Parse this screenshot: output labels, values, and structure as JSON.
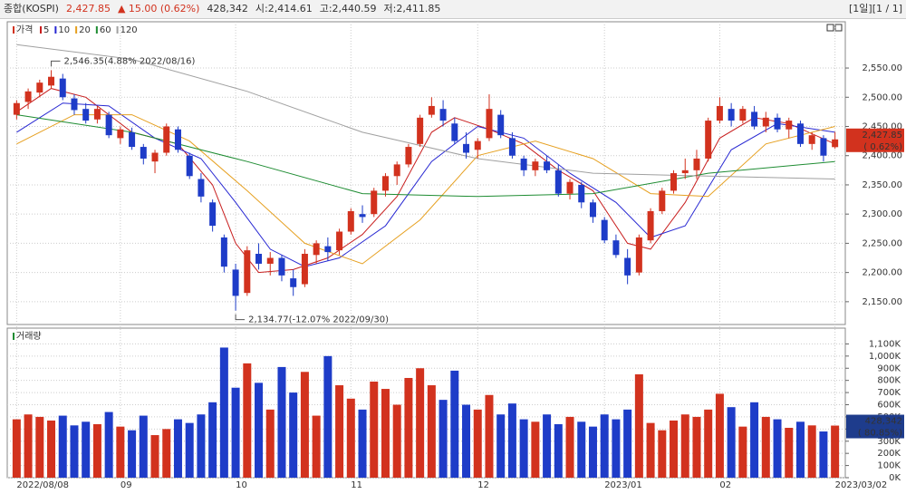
{
  "header": {
    "name": "종합(KOSPI)",
    "price": "2,427.85",
    "change": "▲ 15.00 (0.62%)",
    "volume": "428,342",
    "open": "시:2,414.61",
    "high": "고:2,440.59",
    "low": "저:2,411.85",
    "paging": "[1일][1 / 1]"
  },
  "chart_data": [
    {
      "type": "candlestick",
      "legend_title": "가격",
      "up_color": "#d2321e",
      "down_color": "#1e3cc8",
      "x_labels": [
        {
          "index": 0,
          "label": "2022/08/08"
        },
        {
          "index": 9,
          "label": "09"
        },
        {
          "index": 19,
          "label": "10"
        },
        {
          "index": 29,
          "label": "11"
        },
        {
          "index": 40,
          "label": "12"
        },
        {
          "index": 51,
          "label": "2023/01"
        },
        {
          "index": 61,
          "label": "02"
        },
        {
          "index": 71,
          "label": "2023/03/02"
        }
      ],
      "candles": [
        [
          2470,
          2495,
          2462,
          2490
        ],
        [
          2492,
          2515,
          2480,
          2510
        ],
        [
          2508,
          2530,
          2500,
          2525
        ],
        [
          2520,
          2546.35,
          2515,
          2535
        ],
        [
          2532,
          2540,
          2495,
          2500
        ],
        [
          2498,
          2505,
          2470,
          2478
        ],
        [
          2480,
          2490,
          2455,
          2460
        ],
        [
          2462,
          2485,
          2455,
          2480
        ],
        [
          2470,
          2475,
          2430,
          2435
        ],
        [
          2430,
          2450,
          2420,
          2445
        ],
        [
          2440,
          2448,
          2410,
          2415
        ],
        [
          2415,
          2420,
          2385,
          2395
        ],
        [
          2390,
          2410,
          2370,
          2405
        ],
        [
          2405,
          2455,
          2400,
          2450
        ],
        [
          2445,
          2450,
          2405,
          2410
        ],
        [
          2400,
          2405,
          2360,
          2365
        ],
        [
          2360,
          2370,
          2320,
          2330
        ],
        [
          2320,
          2325,
          2270,
          2280
        ],
        [
          2260,
          2265,
          2200,
          2210
        ],
        [
          2205,
          2215,
          2134.77,
          2160
        ],
        [
          2165,
          2245,
          2160,
          2238
        ],
        [
          2232,
          2250,
          2205,
          2215
        ],
        [
          2215,
          2235,
          2195,
          2225
        ],
        [
          2225,
          2230,
          2185,
          2195
        ],
        [
          2190,
          2205,
          2160,
          2175
        ],
        [
          2180,
          2240,
          2175,
          2232
        ],
        [
          2230,
          2255,
          2215,
          2250
        ],
        [
          2245,
          2260,
          2220,
          2235
        ],
        [
          2238,
          2275,
          2230,
          2270
        ],
        [
          2270,
          2310,
          2265,
          2305
        ],
        [
          2300,
          2315,
          2285,
          2295
        ],
        [
          2300,
          2345,
          2295,
          2340
        ],
        [
          2340,
          2370,
          2330,
          2365
        ],
        [
          2365,
          2390,
          2350,
          2385
        ],
        [
          2385,
          2420,
          2380,
          2415
        ],
        [
          2420,
          2470,
          2415,
          2465
        ],
        [
          2470,
          2500,
          2465,
          2485
        ],
        [
          2480,
          2495,
          2450,
          2460
        ],
        [
          2455,
          2465,
          2420,
          2425
        ],
        [
          2420,
          2440,
          2395,
          2405
        ],
        [
          2410,
          2430,
          2395,
          2425
        ],
        [
          2430,
          2505,
          2425,
          2480
        ],
        [
          2470,
          2478,
          2430,
          2435
        ],
        [
          2430,
          2440,
          2395,
          2400
        ],
        [
          2395,
          2400,
          2365,
          2375
        ],
        [
          2375,
          2395,
          2365,
          2390
        ],
        [
          2390,
          2400,
          2370,
          2375
        ],
        [
          2375,
          2385,
          2330,
          2335
        ],
        [
          2335,
          2360,
          2325,
          2355
        ],
        [
          2350,
          2355,
          2310,
          2320
        ],
        [
          2320,
          2325,
          2285,
          2295
        ],
        [
          2290,
          2295,
          2250,
          2255
        ],
        [
          2255,
          2265,
          2225,
          2230
        ],
        [
          2225,
          2240,
          2180,
          2195
        ],
        [
          2200,
          2265,
          2195,
          2260
        ],
        [
          2255,
          2310,
          2250,
          2305
        ],
        [
          2305,
          2345,
          2300,
          2340
        ],
        [
          2340,
          2375,
          2335,
          2370
        ],
        [
          2370,
          2395,
          2360,
          2375
        ],
        [
          2375,
          2410,
          2360,
          2395
        ],
        [
          2395,
          2465,
          2390,
          2460
        ],
        [
          2460,
          2500,
          2455,
          2485
        ],
        [
          2480,
          2490,
          2450,
          2460
        ],
        [
          2460,
          2485,
          2455,
          2480
        ],
        [
          2475,
          2485,
          2445,
          2450
        ],
        [
          2450,
          2475,
          2440,
          2465
        ],
        [
          2465,
          2472,
          2440,
          2445
        ],
        [
          2445,
          2465,
          2430,
          2460
        ],
        [
          2455,
          2460,
          2415,
          2420
        ],
        [
          2420,
          2440,
          2410,
          2435
        ],
        [
          2430,
          2435,
          2390,
          2400
        ],
        [
          2414.61,
          2440.59,
          2411.85,
          2427.85
        ]
      ],
      "series": [
        {
          "name": "5",
          "color": "#c81e1e",
          "x": [
            0,
            3,
            6,
            10,
            14,
            17,
            19,
            21,
            24,
            27,
            30,
            33,
            36,
            38,
            41,
            44,
            47,
            50,
            53,
            55,
            58,
            61,
            64,
            67,
            71
          ],
          "values": [
            2475,
            2515,
            2500,
            2440,
            2420,
            2350,
            2250,
            2200,
            2205,
            2225,
            2265,
            2330,
            2440,
            2465,
            2445,
            2420,
            2375,
            2340,
            2250,
            2240,
            2320,
            2430,
            2465,
            2455,
            2420
          ]
        },
        {
          "name": "10",
          "color": "#2828d2",
          "x": [
            0,
            4,
            8,
            12,
            16,
            19,
            22,
            25,
            28,
            32,
            36,
            40,
            44,
            48,
            52,
            55,
            58,
            62,
            66,
            71
          ],
          "values": [
            2440,
            2490,
            2485,
            2430,
            2395,
            2320,
            2240,
            2210,
            2225,
            2280,
            2390,
            2450,
            2430,
            2370,
            2320,
            2260,
            2280,
            2410,
            2455,
            2440
          ]
        },
        {
          "name": "20",
          "color": "#e6a020",
          "x": [
            0,
            5,
            10,
            15,
            20,
            25,
            30,
            35,
            40,
            45,
            50,
            55,
            60,
            65,
            71
          ],
          "values": [
            2420,
            2470,
            2470,
            2425,
            2340,
            2250,
            2215,
            2290,
            2400,
            2425,
            2395,
            2335,
            2330,
            2420,
            2450
          ]
        },
        {
          "name": "60",
          "color": "#1e8c32",
          "x": [
            0,
            10,
            20,
            30,
            40,
            50,
            60,
            71
          ],
          "values": [
            2470,
            2440,
            2390,
            2335,
            2330,
            2335,
            2370,
            2390
          ]
        },
        {
          "name": "120",
          "color": "#a0a0a0",
          "x": [
            0,
            10,
            20,
            30,
            40,
            50,
            60,
            71
          ],
          "values": [
            2590,
            2565,
            2510,
            2440,
            2395,
            2370,
            2365,
            2360
          ]
        }
      ],
      "annotations": [
        {
          "index": 3,
          "text": "2,546.35(4.88% 2022/08/16)"
        },
        {
          "index": 19,
          "text": "2,134.77(-12.07% 2022/09/30)"
        }
      ],
      "last_label": [
        "2,427.85",
        "( 0.62%)"
      ],
      "ylim": [
        2111,
        2623
      ],
      "yticks": [
        {
          "value": 2150,
          "label": "2,150.00"
        },
        {
          "value": 2200,
          "label": "2,200.00"
        },
        {
          "value": 2250,
          "label": "2,250.00"
        },
        {
          "value": 2300,
          "label": "2,300.00"
        },
        {
          "value": 2350,
          "label": "2,350.00"
        },
        {
          "value": 2400,
          "label": "2,400.00"
        },
        {
          "value": 2450,
          "label": "2,450.00"
        },
        {
          "value": 2500,
          "label": "2,500.00"
        },
        {
          "value": 2550,
          "label": "2,550.00"
        }
      ],
      "grid": true
    },
    {
      "type": "bar",
      "title": "거래량",
      "values": [
        480000,
        520000,
        500000,
        470000,
        510000,
        430000,
        460000,
        440000,
        540000,
        420000,
        390000,
        510000,
        350000,
        400000,
        480000,
        450000,
        520000,
        620000,
        1070000,
        740000,
        940000,
        780000,
        560000,
        910000,
        700000,
        870000,
        510000,
        1000000,
        760000,
        650000,
        560000,
        790000,
        730000,
        600000,
        820000,
        900000,
        760000,
        640000,
        880000,
        600000,
        560000,
        680000,
        520000,
        610000,
        480000,
        460000,
        520000,
        440000,
        500000,
        460000,
        420000,
        520000,
        480000,
        560000,
        850000,
        450000,
        390000,
        470000,
        520000,
        500000,
        560000,
        690000,
        580000,
        420000,
        620000,
        500000,
        480000,
        410000,
        460000,
        430000,
        380000,
        428342
      ],
      "last_label": [
        "428,342",
        "( 80.85%)"
      ],
      "ylim": [
        0,
        1200000
      ],
      "yticks": [
        {
          "value": 0,
          "label": "0K"
        },
        {
          "value": 100000,
          "label": "100K"
        },
        {
          "value": 200000,
          "label": "200K"
        },
        {
          "value": 300000,
          "label": "300K"
        },
        {
          "value": 400000,
          "label": "400K"
        },
        {
          "value": 500000,
          "label": "500K"
        },
        {
          "value": 600000,
          "label": "600K"
        },
        {
          "value": 700000,
          "label": "700K"
        },
        {
          "value": 800000,
          "label": "800K"
        },
        {
          "value": 900000,
          "label": "900K"
        },
        {
          "value": 1000000,
          "label": "1,000K"
        },
        {
          "value": 1100000,
          "label": "1,100K"
        }
      ],
      "grid": true
    }
  ]
}
